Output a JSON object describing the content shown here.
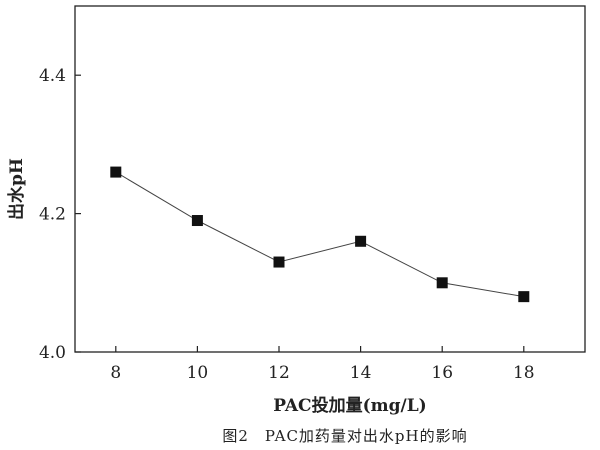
{
  "chart_data": {
    "type": "line",
    "x": [
      8,
      10,
      12,
      14,
      16,
      18
    ],
    "series": [
      {
        "values": [
          4.26,
          4.19,
          4.13,
          4.16,
          4.1,
          4.08
        ]
      }
    ],
    "xlabel": "PAC投加量(mg/L)",
    "ylabel": "出水pH",
    "xlim": [
      7,
      19.5
    ],
    "ylim": [
      4.0,
      4.5
    ],
    "xticks": [
      8,
      10,
      12,
      14,
      16,
      18
    ],
    "yticks": [
      4.0,
      4.2,
      4.4
    ],
    "ytick_labels": [
      "4.0",
      "4.2",
      "4.4"
    ],
    "marker": "square",
    "grid": false,
    "caption": "图2　PAC加药量对出水pH的影响"
  }
}
